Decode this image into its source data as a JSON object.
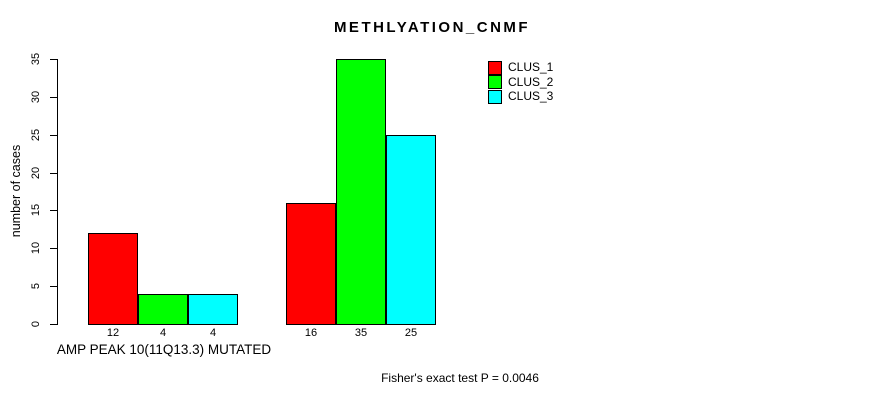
{
  "title": "METHLYATION_CNMF",
  "footer": {
    "caption": "Fisher's exact test P = 0.0046"
  },
  "legend": {
    "position": "top-right"
  },
  "chart_data": {
    "type": "bar",
    "title": "METHLYATION_CNMF",
    "categories": [
      "AMP PEAK 10(11Q13.3) MUTATED",
      ""
    ],
    "series": [
      {
        "name": "CLUS_1",
        "color": "#ff0000",
        "values": [
          12,
          16
        ]
      },
      {
        "name": "CLUS_2",
        "color": "#00ff00",
        "values": [
          4,
          35
        ]
      },
      {
        "name": "CLUS_3",
        "color": "#00ffff",
        "values": [
          4,
          25
        ]
      }
    ],
    "xlabel": "",
    "ylabel": "number of cases",
    "ylim": [
      0,
      35
    ],
    "yticks": [
      0,
      5,
      10,
      15,
      20,
      25,
      30,
      35
    ],
    "bar_value_labels": true,
    "grid": false,
    "legend_entries": [
      "CLUS_1",
      "CLUS_2",
      "CLUS_3"
    ],
    "annotation": "Fisher's exact test P = 0.0046"
  }
}
